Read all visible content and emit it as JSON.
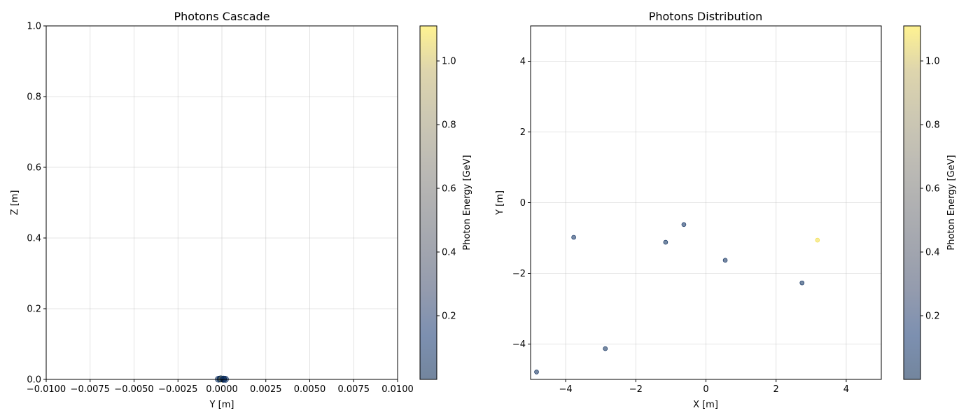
{
  "chart_data": [
    {
      "type": "scatter",
      "title": "Photons Cascade",
      "xlabel": "Y [m]",
      "ylabel": "Z [m]",
      "xlim": [
        -0.01,
        0.01
      ],
      "ylim": [
        0,
        1
      ],
      "xticks": [
        "−0.0100",
        "−0.0075",
        "−0.0050",
        "−0.0025",
        "0.0000",
        "0.0025",
        "0.0050",
        "0.0075",
        "0.0100"
      ],
      "xtick_values": [
        -0.01,
        -0.0075,
        -0.005,
        -0.0025,
        0,
        0.0025,
        0.005,
        0.0075,
        0.01
      ],
      "yticks": [
        "0.0",
        "0.2",
        "0.4",
        "0.6",
        "0.8",
        "1.0"
      ],
      "ytick_values": [
        0,
        0.2,
        0.4,
        0.6,
        0.8,
        1.0
      ],
      "grid": true,
      "colorbar": {
        "label": "Photon Energy [GeV]",
        "range": [
          0.0,
          1.11
        ],
        "ticks": [
          "0.2",
          "0.4",
          "0.6",
          "0.8",
          "1.0"
        ],
        "tick_values": [
          0.2,
          0.4,
          0.6,
          0.8,
          1.0
        ],
        "colormap": "cividis"
      },
      "points": [
        {
          "x": -0.0002,
          "y": 0.0005,
          "energy": 0.05
        },
        {
          "x": -0.0001,
          "y": 0.0012,
          "energy": 0.03
        },
        {
          "x": 0.0,
          "y": 0.0008,
          "energy": 1.05
        },
        {
          "x": 0.0001,
          "y": 0.001,
          "energy": 0.04
        },
        {
          "x": 0.0002,
          "y": 0.0004,
          "energy": 0.06
        },
        {
          "x": -5e-05,
          "y": 0.0015,
          "energy": 0.02
        },
        {
          "x": 8e-05,
          "y": 0.0003,
          "energy": 0.08
        }
      ]
    },
    {
      "type": "scatter",
      "title": "Photons Distribution",
      "xlabel": "X [m]",
      "ylabel": "Y [m]",
      "xlim": [
        -5,
        5
      ],
      "ylim": [
        -5,
        5
      ],
      "xticks": [
        "−4",
        "−2",
        "0",
        "2",
        "4"
      ],
      "xtick_values": [
        -4,
        -2,
        0,
        2,
        4
      ],
      "yticks": [
        "−4",
        "−2",
        "0",
        "2",
        "4"
      ],
      "ytick_values": [
        -4,
        -2,
        0,
        2,
        4
      ],
      "grid": true,
      "colorbar": {
        "label": "Photon Energy [GeV]",
        "range": [
          0.0,
          1.11
        ],
        "ticks": [
          "0.2",
          "0.4",
          "0.6",
          "0.8",
          "1.0"
        ],
        "tick_values": [
          0.2,
          0.4,
          0.6,
          0.8,
          1.0
        ],
        "colormap": "cividis"
      },
      "points": [
        {
          "x": -4.83,
          "y": -4.79,
          "energy": 0.04
        },
        {
          "x": -3.77,
          "y": -0.98,
          "energy": 0.07
        },
        {
          "x": -2.87,
          "y": -4.13,
          "energy": 0.03
        },
        {
          "x": -1.15,
          "y": -1.12,
          "energy": 0.05
        },
        {
          "x": -0.63,
          "y": -0.62,
          "energy": 0.06
        },
        {
          "x": 0.55,
          "y": -1.63,
          "energy": 0.04
        },
        {
          "x": 2.74,
          "y": -2.27,
          "energy": 0.05
        },
        {
          "x": 3.18,
          "y": -1.06,
          "energy": 1.08
        }
      ]
    }
  ]
}
